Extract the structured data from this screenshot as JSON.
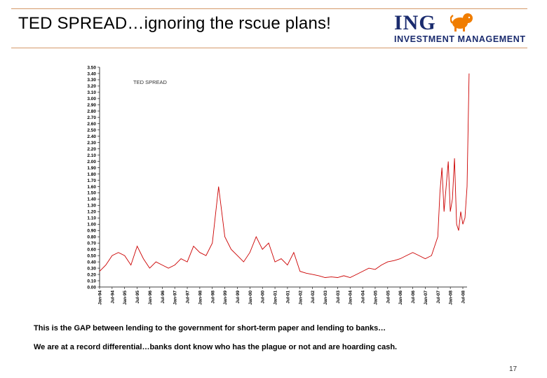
{
  "slide": {
    "title": "TED SPREAD…ignoring the rscue plans!",
    "logo_word": "ING",
    "logo_sub": "INVESTMENT MANAGEMENT",
    "logo_icon": "lion-icon",
    "colors": {
      "accent_rule": "#d59a6a",
      "brand_navy": "#1a2b6e",
      "brand_orange": "#f07d00",
      "series": "#cc0000"
    },
    "notes": [
      "This is the GAP between lending to the government for short-term paper and lending to banks…",
      "We are at a record differential…banks dont know who has the plague or not and are hoarding cash."
    ],
    "page_number": "17"
  },
  "chart_data": {
    "type": "line",
    "title": "",
    "xlabel": "",
    "ylabel": "",
    "ylim": [
      0,
      3.5
    ],
    "yticks": [
      "0.00",
      "0.10",
      "0.20",
      "0.30",
      "0.40",
      "0.50",
      "0.60",
      "0.70",
      "0.80",
      "0.90",
      "1.00",
      "1.10",
      "1.20",
      "1.30",
      "1.40",
      "1.50",
      "1.60",
      "1.70",
      "1.80",
      "1.90",
      "2.00",
      "2.10",
      "2.20",
      "2.30",
      "2.40",
      "2.50",
      "2.60",
      "2.70",
      "2.80",
      "2.90",
      "3.00",
      "3.10",
      "3.20",
      "3.30",
      "3.40",
      "3.50"
    ],
    "xticks": [
      "Jan-94",
      "Jul-94",
      "Jan-95",
      "Jul-95",
      "Jan-96",
      "Jul-96",
      "Jan-97",
      "Jul-97",
      "Jan-98",
      "Jul-98",
      "Jan-99",
      "Jul-99",
      "Jan-00",
      "Jul-00",
      "Jan-01",
      "Jul-01",
      "Jan-02",
      "Jul-02",
      "Jan-03",
      "Jul-03",
      "Jan-04",
      "Jul-04",
      "Jan-05",
      "Jul-05",
      "Jan-06",
      "Jul-06",
      "Jan-07",
      "Jul-07",
      "Jan-08",
      "Jul-08"
    ],
    "grid": false,
    "legend": "none",
    "annotation": "TED SPREAD",
    "series": [
      {
        "name": "TED SPREAD",
        "x": [
          "Jan-94",
          "Apr-94",
          "Jul-94",
          "Oct-94",
          "Jan-95",
          "Apr-95",
          "Jul-95",
          "Oct-95",
          "Jan-96",
          "Apr-96",
          "Jul-96",
          "Oct-96",
          "Jan-97",
          "Apr-97",
          "Jul-97",
          "Oct-97",
          "Jan-98",
          "Apr-98",
          "Jul-98",
          "Oct-98",
          "Jan-99",
          "Apr-99",
          "Jul-99",
          "Oct-99",
          "Jan-00",
          "Apr-00",
          "Jul-00",
          "Oct-00",
          "Jan-01",
          "Apr-01",
          "Jul-01",
          "Oct-01",
          "Jan-02",
          "Apr-02",
          "Jul-02",
          "Oct-02",
          "Jan-03",
          "Apr-03",
          "Jul-03",
          "Oct-03",
          "Jan-04",
          "Apr-04",
          "Jul-04",
          "Oct-04",
          "Jan-05",
          "Apr-05",
          "Jul-05",
          "Oct-05",
          "Jan-06",
          "Apr-06",
          "Jul-06",
          "Oct-06",
          "Jan-07",
          "Apr-07",
          "Jul-07",
          "Aug-07",
          "Sep-07",
          "Oct-07",
          "Nov-07",
          "Dec-07",
          "Jan-08",
          "Feb-08",
          "Mar-08",
          "Apr-08",
          "May-08",
          "Jun-08",
          "Jul-08",
          "Aug-08",
          "Sep-08",
          "Oct-08"
        ],
        "values": [
          0.25,
          0.35,
          0.5,
          0.55,
          0.5,
          0.35,
          0.65,
          0.45,
          0.3,
          0.4,
          0.35,
          0.3,
          0.35,
          0.45,
          0.4,
          0.65,
          0.55,
          0.5,
          0.7,
          1.6,
          0.8,
          0.6,
          0.5,
          0.4,
          0.55,
          0.8,
          0.6,
          0.7,
          0.4,
          0.45,
          0.35,
          0.55,
          0.25,
          0.22,
          0.2,
          0.18,
          0.15,
          0.16,
          0.15,
          0.18,
          0.15,
          0.2,
          0.25,
          0.3,
          0.28,
          0.35,
          0.4,
          0.42,
          0.45,
          0.5,
          0.55,
          0.5,
          0.45,
          0.5,
          0.8,
          1.5,
          1.9,
          1.2,
          1.6,
          2.0,
          1.2,
          1.4,
          2.05,
          1.0,
          0.9,
          1.2,
          1.0,
          1.1,
          1.6,
          3.4
        ]
      }
    ]
  }
}
